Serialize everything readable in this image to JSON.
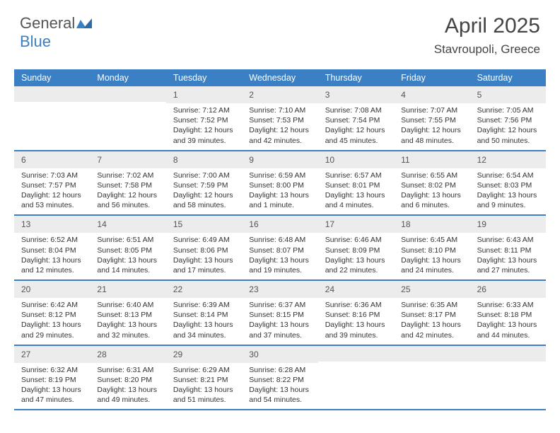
{
  "brand": {
    "name_a": "General",
    "name_b": "Blue"
  },
  "title": "April 2025",
  "location": "Stavroupoli, Greece",
  "colors": {
    "accent": "#3b7fc4",
    "header_bg": "#3b7fc4",
    "daynum_bg": "#ececec",
    "text": "#333333",
    "title_text": "#444444"
  },
  "day_names": [
    "Sunday",
    "Monday",
    "Tuesday",
    "Wednesday",
    "Thursday",
    "Friday",
    "Saturday"
  ],
  "weeks": [
    [
      null,
      null,
      {
        "d": "1",
        "sr": "7:12 AM",
        "ss": "7:52 PM",
        "dl": "12 hours and 39 minutes."
      },
      {
        "d": "2",
        "sr": "7:10 AM",
        "ss": "7:53 PM",
        "dl": "12 hours and 42 minutes."
      },
      {
        "d": "3",
        "sr": "7:08 AM",
        "ss": "7:54 PM",
        "dl": "12 hours and 45 minutes."
      },
      {
        "d": "4",
        "sr": "7:07 AM",
        "ss": "7:55 PM",
        "dl": "12 hours and 48 minutes."
      },
      {
        "d": "5",
        "sr": "7:05 AM",
        "ss": "7:56 PM",
        "dl": "12 hours and 50 minutes."
      }
    ],
    [
      {
        "d": "6",
        "sr": "7:03 AM",
        "ss": "7:57 PM",
        "dl": "12 hours and 53 minutes."
      },
      {
        "d": "7",
        "sr": "7:02 AM",
        "ss": "7:58 PM",
        "dl": "12 hours and 56 minutes."
      },
      {
        "d": "8",
        "sr": "7:00 AM",
        "ss": "7:59 PM",
        "dl": "12 hours and 58 minutes."
      },
      {
        "d": "9",
        "sr": "6:59 AM",
        "ss": "8:00 PM",
        "dl": "13 hours and 1 minute."
      },
      {
        "d": "10",
        "sr": "6:57 AM",
        "ss": "8:01 PM",
        "dl": "13 hours and 4 minutes."
      },
      {
        "d": "11",
        "sr": "6:55 AM",
        "ss": "8:02 PM",
        "dl": "13 hours and 6 minutes."
      },
      {
        "d": "12",
        "sr": "6:54 AM",
        "ss": "8:03 PM",
        "dl": "13 hours and 9 minutes."
      }
    ],
    [
      {
        "d": "13",
        "sr": "6:52 AM",
        "ss": "8:04 PM",
        "dl": "13 hours and 12 minutes."
      },
      {
        "d": "14",
        "sr": "6:51 AM",
        "ss": "8:05 PM",
        "dl": "13 hours and 14 minutes."
      },
      {
        "d": "15",
        "sr": "6:49 AM",
        "ss": "8:06 PM",
        "dl": "13 hours and 17 minutes."
      },
      {
        "d": "16",
        "sr": "6:48 AM",
        "ss": "8:07 PM",
        "dl": "13 hours and 19 minutes."
      },
      {
        "d": "17",
        "sr": "6:46 AM",
        "ss": "8:09 PM",
        "dl": "13 hours and 22 minutes."
      },
      {
        "d": "18",
        "sr": "6:45 AM",
        "ss": "8:10 PM",
        "dl": "13 hours and 24 minutes."
      },
      {
        "d": "19",
        "sr": "6:43 AM",
        "ss": "8:11 PM",
        "dl": "13 hours and 27 minutes."
      }
    ],
    [
      {
        "d": "20",
        "sr": "6:42 AM",
        "ss": "8:12 PM",
        "dl": "13 hours and 29 minutes."
      },
      {
        "d": "21",
        "sr": "6:40 AM",
        "ss": "8:13 PM",
        "dl": "13 hours and 32 minutes."
      },
      {
        "d": "22",
        "sr": "6:39 AM",
        "ss": "8:14 PM",
        "dl": "13 hours and 34 minutes."
      },
      {
        "d": "23",
        "sr": "6:37 AM",
        "ss": "8:15 PM",
        "dl": "13 hours and 37 minutes."
      },
      {
        "d": "24",
        "sr": "6:36 AM",
        "ss": "8:16 PM",
        "dl": "13 hours and 39 minutes."
      },
      {
        "d": "25",
        "sr": "6:35 AM",
        "ss": "8:17 PM",
        "dl": "13 hours and 42 minutes."
      },
      {
        "d": "26",
        "sr": "6:33 AM",
        "ss": "8:18 PM",
        "dl": "13 hours and 44 minutes."
      }
    ],
    [
      {
        "d": "27",
        "sr": "6:32 AM",
        "ss": "8:19 PM",
        "dl": "13 hours and 47 minutes."
      },
      {
        "d": "28",
        "sr": "6:31 AM",
        "ss": "8:20 PM",
        "dl": "13 hours and 49 minutes."
      },
      {
        "d": "29",
        "sr": "6:29 AM",
        "ss": "8:21 PM",
        "dl": "13 hours and 51 minutes."
      },
      {
        "d": "30",
        "sr": "6:28 AM",
        "ss": "8:22 PM",
        "dl": "13 hours and 54 minutes."
      },
      null,
      null,
      null
    ]
  ],
  "labels": {
    "sunrise": "Sunrise:",
    "sunset": "Sunset:",
    "daylight": "Daylight:"
  }
}
